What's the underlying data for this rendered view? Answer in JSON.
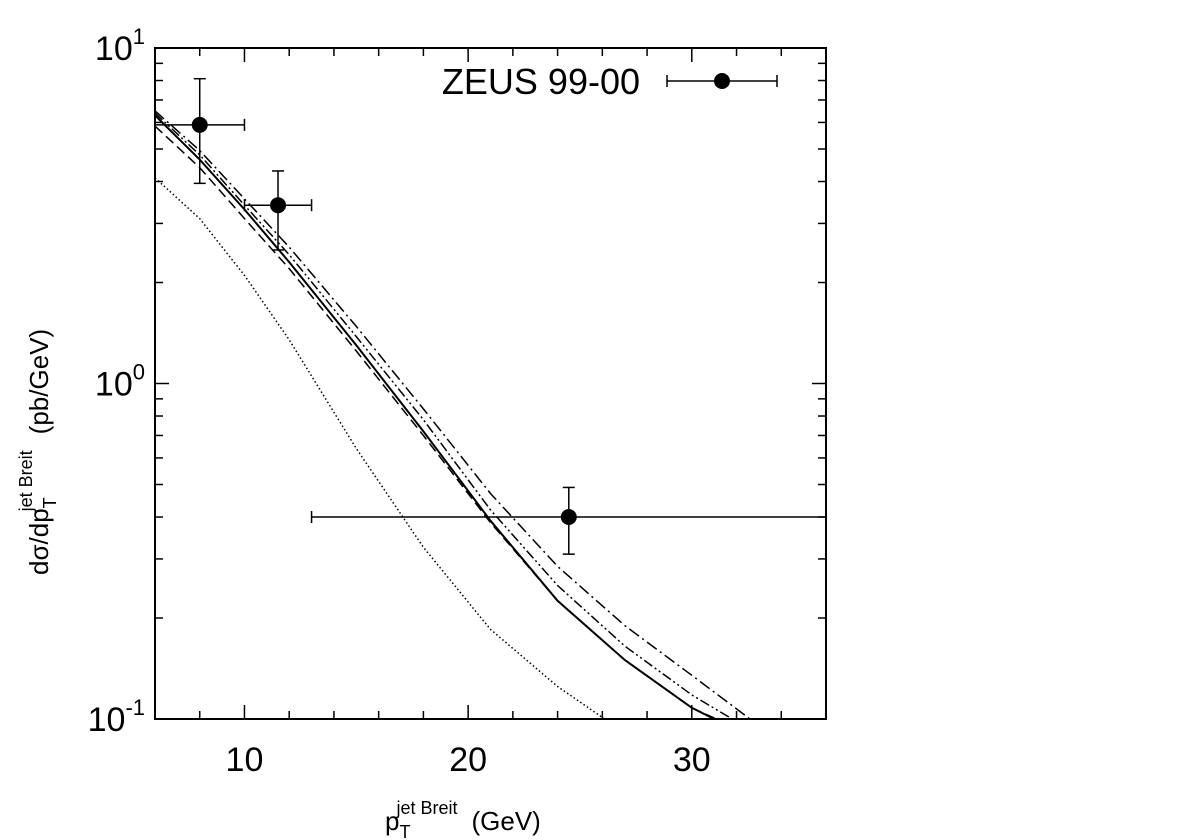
{
  "chart_data": {
    "type": "scatter",
    "xlabel": {
      "main": "p",
      "sub": "T",
      "sup": "jet  Breit",
      "unit": "(GeV)"
    },
    "ylabel": {
      "main": "dσ/dp",
      "sub": "T",
      "sup": "jet  Breit",
      "unit": "(pb/GeV)"
    },
    "xlim": [
      6,
      36
    ],
    "ylim": [
      0.1,
      10
    ],
    "yscale": "log",
    "grid": false,
    "legend_position": "top-right",
    "x_ticks": [
      {
        "value": 10,
        "label": "10"
      },
      {
        "value": 20,
        "label": "20"
      },
      {
        "value": 30,
        "label": "30"
      }
    ],
    "y_ticks": [
      {
        "value": 0.1,
        "base": "10",
        "exp": "-1"
      },
      {
        "value": 1,
        "base": "10",
        "exp": "0"
      },
      {
        "value": 10,
        "base": "10",
        "exp": "1"
      }
    ],
    "data_series": {
      "name": "ZEUS 99-00",
      "points": [
        {
          "x": 8,
          "y": 5.9,
          "xerr": [
            2,
            2
          ],
          "yerr": [
            1.95,
            2.2
          ]
        },
        {
          "x": 11.5,
          "y": 3.4,
          "xerr": [
            1.5,
            1.5
          ],
          "yerr": [
            0.9,
            0.9
          ]
        },
        {
          "x": 24.5,
          "y": 0.4,
          "xerr": [
            11.5,
            11.5
          ],
          "yerr": [
            0.09,
            0.09
          ]
        }
      ]
    },
    "curves": [
      {
        "style": "solid",
        "x": [
          6,
          8,
          10,
          12,
          15,
          18,
          21,
          24,
          27,
          30,
          31
        ],
        "y": [
          6.3,
          4.65,
          3.3,
          2.3,
          1.3,
          0.72,
          0.39,
          0.225,
          0.15,
          0.108,
          0.1
        ]
      },
      {
        "style": "dashed",
        "x": [
          6,
          8,
          10,
          12,
          15,
          18,
          21,
          24,
          27,
          30,
          31.1
        ],
        "y": [
          5.85,
          4.4,
          3.1,
          2.2,
          1.25,
          0.7,
          0.385,
          0.225,
          0.15,
          0.108,
          0.1
        ]
      },
      {
        "style": "dash-dot",
        "x": [
          6,
          8,
          10,
          12,
          15,
          18,
          21,
          24,
          27,
          30,
          32.6
        ],
        "y": [
          6.5,
          4.95,
          3.55,
          2.55,
          1.48,
          0.84,
          0.47,
          0.285,
          0.19,
          0.135,
          0.1
        ]
      },
      {
        "style": "dash-dot-dot",
        "x": [
          6,
          8,
          10,
          12,
          15,
          18,
          21,
          24,
          27,
          30,
          31.8
        ],
        "y": [
          6.4,
          4.8,
          3.4,
          2.42,
          1.38,
          0.78,
          0.42,
          0.25,
          0.165,
          0.118,
          0.1
        ]
      },
      {
        "style": "dotted",
        "x": [
          6,
          8,
          10,
          12,
          15,
          18,
          21,
          24,
          26.1
        ],
        "y": [
          4.1,
          3.1,
          2.1,
          1.35,
          0.64,
          0.325,
          0.185,
          0.125,
          0.1
        ]
      }
    ]
  }
}
